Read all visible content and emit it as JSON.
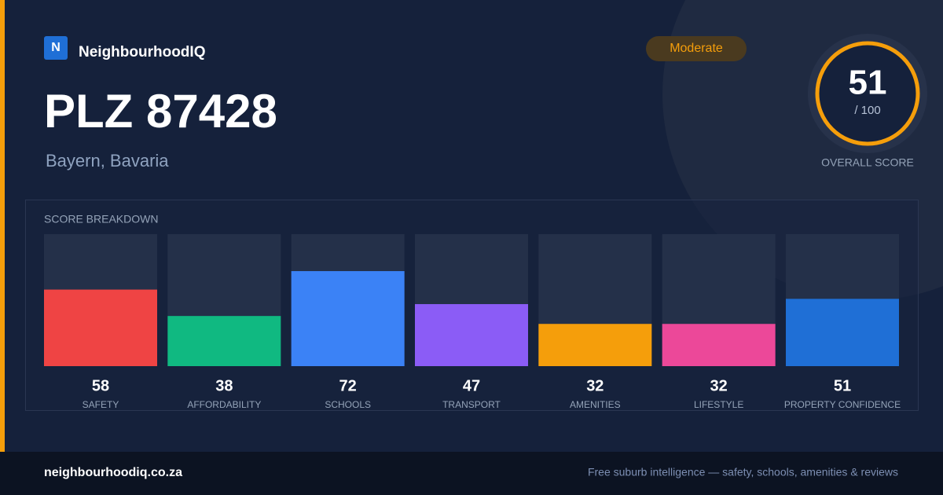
{
  "brand": {
    "logo_letter": "N",
    "name": "NeighbourhoodIQ"
  },
  "header": {
    "title": "PLZ 87428",
    "location": "Bayern, Bavaria",
    "badge": "Moderate"
  },
  "overall": {
    "score": 51,
    "out_of": "/ 100",
    "label": "OVERALL SCORE"
  },
  "chart_data": {
    "type": "bar",
    "title": "SCORE BREAKDOWN",
    "categories": [
      "SAFETY",
      "AFFORDABILITY",
      "SCHOOLS",
      "TRANSPORT",
      "AMENITIES",
      "LIFESTYLE",
      "PROPERTY CONFIDENCE"
    ],
    "values": [
      58,
      38,
      72,
      47,
      32,
      32,
      51
    ],
    "colors": [
      "#ef4444",
      "#10b981",
      "#3b82f6",
      "#8b5cf6",
      "#f59e0b",
      "#ec4899",
      "#1f6fd6"
    ],
    "ylim": [
      0,
      100
    ]
  },
  "footer": {
    "site": "neighbourhoodiq.co.za",
    "tagline": "Free suburb intelligence — safety, schools, amenities & reviews"
  }
}
